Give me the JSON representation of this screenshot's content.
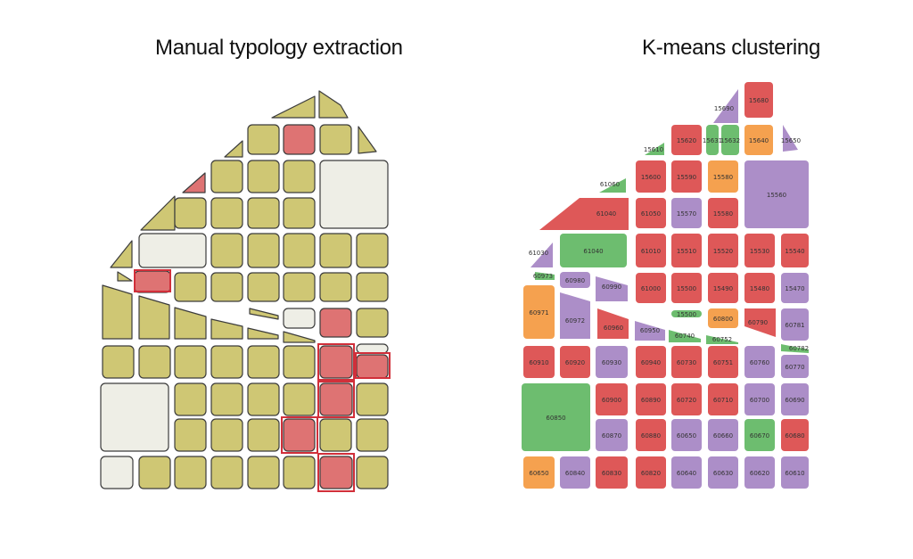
{
  "titles": {
    "left": "Manual typology extraction",
    "right": "K-means clustering"
  },
  "colors": {
    "typology_default": "#cfc774",
    "typology_highlight": "#de7373",
    "typology_empty": "#eeeee6",
    "selection_outline": "#d12f3a",
    "cluster_red": "#de5858",
    "cluster_purple": "#ac8ec8",
    "cluster_green": "#6dbd6f",
    "cluster_orange": "#f5a14f"
  },
  "clusters": {
    "red": [
      "15680",
      "15620",
      "15600",
      "15590",
      "61040",
      "61050",
      "15560",
      "61010",
      "15510",
      "15520",
      "15530",
      "15540",
      "61000",
      "15500",
      "15490",
      "15480",
      "60960",
      "60910",
      "60940",
      "60730",
      "60751",
      "60900",
      "60890",
      "60720",
      "60710",
      "60680",
      "60880",
      "60830",
      "60820"
    ],
    "purple": [
      "15690",
      "15650",
      "15570",
      "15560",
      "61030",
      "60980",
      "60990",
      "60972",
      "60950",
      "60790",
      "60781",
      "15470",
      "60930",
      "60760",
      "60770",
      "60700",
      "60690",
      "60870",
      "60650",
      "60660",
      "60840",
      "60640",
      "60630",
      "60620",
      "60610"
    ],
    "green": [
      "15610",
      "15631",
      "15632",
      "61060",
      "61040",
      "60973",
      "15500",
      "60740",
      "60752",
      "60782",
      "60850",
      "60670"
    ],
    "orange": [
      "15640",
      "15580",
      "60971",
      "60800",
      "60650"
    ]
  },
  "block_labels": {
    "r0": [
      "15690",
      "15680"
    ],
    "r1": [
      "15610",
      "15620",
      "15631",
      "15632",
      "15640",
      "15650"
    ],
    "r2": [
      "61060",
      "15600",
      "15590",
      "15580",
      "15560"
    ],
    "r3": [
      "61040",
      "61050",
      "15570",
      "15580"
    ],
    "r4": [
      "61030",
      "61040",
      "61010",
      "15510",
      "15520",
      "15530",
      "15540"
    ],
    "r5": [
      "60973",
      "60980",
      "60990",
      "61000",
      "15500",
      "15490",
      "15480",
      "15470"
    ],
    "r6": [
      "60971",
      "60972",
      "60960",
      "60950",
      "15500",
      "60800",
      "60790",
      "60781"
    ],
    "r7": [
      "60740",
      "60752",
      "60782"
    ],
    "r8": [
      "60910",
      "60920",
      "60930",
      "60940",
      "60730",
      "60751",
      "60760",
      "60770"
    ],
    "r9": [
      "60850",
      "60900",
      "60890",
      "60720",
      "60710",
      "60700",
      "60690"
    ],
    "r10": [
      "60870",
      "60880",
      "60650",
      "60660",
      "60670",
      "60680"
    ],
    "r11": [
      "60650",
      "60840",
      "60830",
      "60820",
      "60640",
      "60630",
      "60620",
      "60610"
    ]
  }
}
